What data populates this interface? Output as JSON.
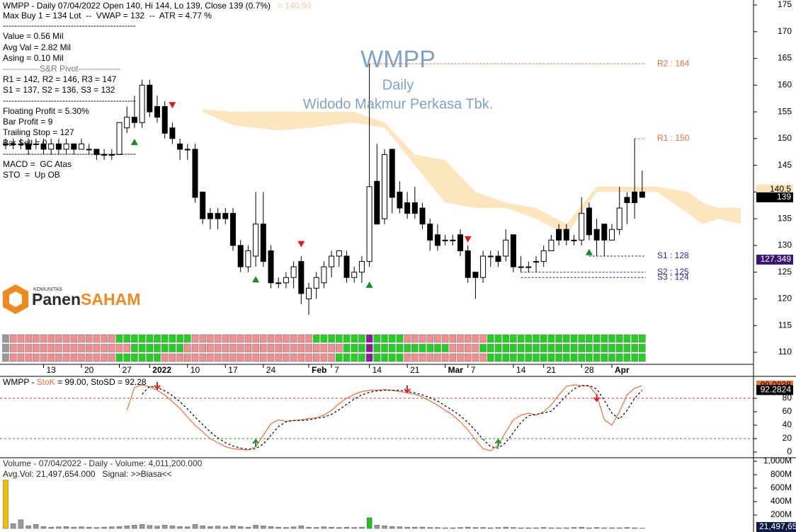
{
  "overlay": {
    "title": "WMPP",
    "subtitle": "Daily",
    "company": "Widodo Makmur Perkasa Tbk.",
    "info": [
      "WMPP - Daily 07/04/2022 Open 140, Hi 144, Lo 139, Close 139 (0.7%)",
      "Max Buy 1 = 134 Lot  --  VWAP = 132  --  ATR = 4.77 %",
      "-----------------------------------------------",
      "Value = 0.56 Mil",
      "Avg Val = 2.82 Mil",
      "Asing = 0.10 Mil",
      "-------------S&R Pivot---------------",
      "R1 = 142, R2 = 146, R3 = 147",
      "S1 = 137, S2 = 136, S3 = 132",
      "-----------------------------------------------",
      "Floating Profit = 5.30%",
      "Bar Profit = 9",
      "Trailing Stop = 127",
      "Bar Sell = 0",
      "-----------------------------------------------",
      "MACD =  GC Atas",
      "STO  =  Up OB"
    ],
    "info_extra": "= 140.50",
    "logo": {
      "small": "KOMUNITAS",
      "part1": "Panen",
      "part2": "SAHAM"
    }
  },
  "chart_data": [
    {
      "type": "candlestick",
      "categories": [
        null,
        null,
        null,
        null,
        null,
        "13",
        null,
        null,
        null,
        null,
        "20",
        null,
        null,
        null,
        null,
        "27",
        null,
        null,
        null,
        "2022",
        null,
        null,
        null,
        null,
        "10",
        null,
        null,
        null,
        null,
        "17",
        null,
        null,
        null,
        null,
        "24",
        null,
        null,
        null,
        null,
        null,
        "Feb",
        null,
        null,
        "7",
        null,
        null,
        null,
        null,
        "14",
        null,
        null,
        null,
        null,
        "21",
        null,
        null,
        null,
        null,
        "Mar",
        null,
        null,
        "7",
        null,
        null,
        null,
        null,
        null,
        "14",
        null,
        null,
        null,
        "21",
        null,
        null,
        null,
        null,
        "28",
        null,
        null,
        null,
        "Apr",
        null,
        null,
        null,
        null
      ],
      "open": [
        149,
        149,
        149,
        149,
        149,
        149,
        148,
        149,
        148,
        149,
        148,
        148,
        148,
        147,
        147,
        147,
        152,
        154,
        153,
        160,
        156,
        156,
        152,
        149,
        148,
        148,
        140,
        136,
        136,
        136,
        136,
        130,
        126,
        128,
        134,
        129,
        123,
        123,
        124,
        127,
        120,
        122,
        123,
        126,
        128,
        128,
        124,
        125,
        127,
        142,
        135,
        148,
        140,
        138,
        138,
        137,
        134,
        132,
        131,
        131,
        132,
        129,
        125,
        124,
        128,
        128,
        128,
        132,
        126,
        126,
        127,
        127,
        129,
        133,
        133,
        131,
        131,
        137,
        133,
        134,
        131,
        133,
        139,
        140,
        140
      ],
      "high": [
        150,
        150,
        150,
        150,
        150,
        150,
        150,
        150,
        150,
        149,
        150,
        149,
        148,
        148,
        148,
        153,
        156,
        158,
        161,
        161,
        158,
        157,
        153,
        150,
        149,
        149,
        140,
        137,
        137,
        137,
        137,
        131,
        130,
        140,
        140,
        130,
        124,
        125,
        127,
        128,
        123,
        125,
        127,
        129,
        129,
        129,
        126,
        128,
        164,
        149,
        148,
        148,
        142,
        140,
        141,
        138,
        135,
        134,
        132,
        132,
        133,
        130,
        125,
        129,
        129,
        129,
        133,
        132,
        128,
        127,
        128,
        130,
        132,
        134,
        134,
        132,
        139,
        138,
        135,
        134,
        134,
        141,
        140,
        150,
        144
      ],
      "low": [
        148,
        148,
        148,
        147,
        148,
        147,
        147,
        147,
        147,
        147,
        148,
        147,
        146,
        146,
        146,
        147,
        151,
        152,
        152,
        154,
        153,
        150,
        149,
        146,
        146,
        138,
        134,
        133,
        133,
        134,
        129,
        125,
        125,
        126,
        126,
        122,
        122,
        122,
        122,
        119,
        117,
        120,
        122,
        124,
        126,
        123,
        123,
        123,
        126,
        134,
        134,
        136,
        136,
        135,
        135,
        133,
        129,
        129,
        130,
        130,
        128,
        123,
        120,
        123,
        126,
        126,
        127,
        125,
        125,
        125,
        125,
        126,
        129,
        130,
        130,
        130,
        130,
        131,
        128,
        128,
        131,
        132,
        134,
        135,
        139
      ],
      "close": [
        149,
        149,
        149,
        148,
        149,
        148,
        149,
        148,
        149,
        148,
        149,
        148,
        147,
        147,
        147,
        153,
        154,
        153,
        160,
        155,
        154,
        151,
        150,
        148,
        148,
        139,
        135,
        135,
        135,
        135,
        130,
        126,
        129,
        134,
        127,
        123,
        123,
        124,
        126,
        121,
        122,
        124,
        126,
        128,
        129,
        124,
        125,
        127,
        141,
        134,
        147,
        139,
        137,
        136,
        136,
        134,
        131,
        130,
        131,
        131,
        129,
        124,
        124,
        128,
        128,
        127,
        131,
        126,
        126,
        126,
        127,
        129,
        131,
        131,
        131,
        131,
        136,
        132,
        131,
        131,
        133,
        137,
        138,
        138,
        139
      ],
      "up_color": "#ffffff",
      "down_color": "#000000",
      "ylim": [
        107.75,
        175.93
      ],
      "yticks": [
        110,
        115,
        120,
        125,
        130,
        135,
        140,
        145,
        150,
        155,
        160,
        165,
        170,
        175
      ],
      "cloud": {
        "x": [
          26,
          30,
          36,
          40,
          46,
          50,
          54,
          58,
          62,
          66,
          70,
          74,
          78,
          82,
          86,
          90,
          92,
          94,
          97
        ],
        "upper": [
          155.5,
          155,
          155,
          155,
          155,
          153,
          147,
          146,
          140,
          138,
          137,
          134,
          141,
          141,
          141,
          140,
          138,
          137,
          137
        ],
        "lower": [
          155,
          152.5,
          151.5,
          152,
          153,
          152,
          145,
          138,
          137,
          137,
          135,
          132,
          140,
          140,
          140,
          136,
          134,
          135,
          134
        ],
        "color": "#fde6bd"
      },
      "pivots": [
        {
          "label": "R2 : 164",
          "value": 164,
          "start": 48,
          "color": "#e8703a"
        },
        {
          "label": "R1 : 150",
          "value": 150,
          "start": 83,
          "color": "#e8703a"
        },
        {
          "label": "S1 : 128",
          "value": 128,
          "start": 77,
          "color": "#2b2b8c"
        },
        {
          "label": "S2 : 125",
          "value": 125,
          "start": 68,
          "color": "#2b2b8c"
        },
        {
          "label": "S3 : 124",
          "value": 124,
          "start": 68,
          "color": "#2b2b8c"
        }
      ],
      "signals": [
        {
          "index": 17,
          "value": 149.3,
          "dir": "up"
        },
        {
          "index": 33,
          "value": 123.6,
          "dir": "up"
        },
        {
          "index": 48,
          "value": 122.6,
          "dir": "up"
        },
        {
          "index": 77,
          "value": 128.7,
          "dir": "up"
        },
        {
          "index": 22,
          "value": 156.3,
          "dir": "down"
        },
        {
          "index": 39,
          "value": 130.3,
          "dir": "down"
        },
        {
          "index": 61,
          "value": 131.2,
          "dir": "down"
        }
      ],
      "right_labels": [
        {
          "value": 140.5,
          "color": "#fbe3b8",
          "text_color": "#000000"
        },
        {
          "value": 127.349,
          "color": "#3a1670",
          "text_color": "#ffffff"
        }
      ],
      "status_rows": [
        [
          [
            "x",
            1
          ],
          [
            "r",
            14
          ],
          [
            "g",
            10
          ],
          [
            "r",
            16
          ],
          [
            "g",
            7
          ],
          [
            "p",
            1
          ],
          [
            "g",
            4
          ],
          [
            "r",
            11
          ],
          [
            "g",
            21
          ]
        ],
        [
          [
            "x",
            1
          ],
          [
            "r",
            16
          ],
          [
            "g",
            7
          ],
          [
            "r",
            21
          ],
          [
            "g",
            3
          ],
          [
            "p",
            1
          ],
          [
            "g",
            10
          ],
          [
            "r",
            4
          ],
          [
            "g",
            22
          ]
        ],
        [
          [
            "x",
            1
          ],
          [
            "r",
            14
          ],
          [
            "g",
            6
          ],
          [
            "r",
            23
          ],
          [
            "g",
            4
          ],
          [
            "p",
            1
          ],
          [
            "g",
            4
          ],
          [
            "r",
            11
          ],
          [
            "g",
            21
          ]
        ]
      ],
      "status_colors": {
        "x": "#9a9a9a",
        "r": "#f48f8f",
        "g": "#22d022",
        "p": "#8b1a9b"
      }
    },
    {
      "type": "line",
      "header": [
        "WMPP - ",
        "StoK",
        " = 99.00, StoSD = 92.28"
      ],
      "ylim": [
        -8.4,
        111.6
      ],
      "yticks": [
        0,
        20,
        40,
        60,
        80
      ],
      "levels": [
        {
          "value": 80,
          "color": "#d03030"
        },
        {
          "value": 20,
          "color": "#309030"
        }
      ],
      "series": [
        {
          "color": "#e8703a",
          "dash": false,
          "box_text": "#000000",
          "values": [
            null,
            null,
            null,
            null,
            null,
            null,
            null,
            null,
            null,
            null,
            null,
            null,
            null,
            null,
            null,
            null,
            62,
            96,
            100,
            97,
            92,
            85,
            75,
            65,
            52,
            40,
            30,
            20,
            14,
            8,
            5,
            4,
            3,
            8,
            25,
            42,
            48,
            46,
            47,
            48,
            50,
            51,
            55,
            62,
            72,
            80,
            86,
            90,
            92,
            92,
            93,
            92,
            90,
            88,
            86,
            82,
            76,
            70,
            62,
            55,
            45,
            33,
            18,
            5,
            2,
            10,
            30,
            48,
            55,
            58,
            55,
            60,
            70,
            85,
            98,
            100,
            99,
            98,
            85,
            48,
            40,
            60,
            85,
            95,
            99.0038
          ]
        },
        {
          "color": "#000000",
          "dash": true,
          "box_text": "#ffffff",
          "values": [
            null,
            null,
            null,
            null,
            null,
            null,
            null,
            null,
            null,
            null,
            null,
            null,
            null,
            null,
            null,
            null,
            null,
            null,
            86,
            98,
            96,
            91,
            84,
            75,
            64,
            52,
            41,
            30,
            21,
            14,
            9,
            6,
            4,
            5,
            12,
            25,
            38,
            45,
            47,
            47,
            48,
            50,
            52,
            56,
            63,
            71,
            79,
            85,
            89,
            91,
            92,
            92,
            92,
            90,
            88,
            85,
            81,
            76,
            69,
            62,
            54,
            44,
            32,
            19,
            8,
            6,
            14,
            29,
            44,
            54,
            56,
            58,
            61,
            72,
            84,
            94,
            99,
            99,
            94,
            77,
            58,
            49,
            62,
            80,
            92.2824
          ]
        }
      ],
      "signals": [
        {
          "index": 20,
          "value": 94,
          "dir": "down"
        },
        {
          "index": 53,
          "value": 88.9,
          "dir": "down"
        },
        {
          "index": 78,
          "value": 76,
          "dir": "down"
        },
        {
          "index": 33,
          "value": 18,
          "dir": "up"
        },
        {
          "index": 65,
          "value": 18,
          "dir": "up"
        }
      ]
    },
    {
      "type": "bar",
      "header": [
        "Volume - 07/04/2022 - Daily - Volume: 4,011,200.000",
        "Avg.Vol: 21,497,654.000   Signal: >>Biasa<<"
      ],
      "ylim": [
        -52600000,
        1042000000
      ],
      "yticks": [
        {
          "value": 200000000,
          "label": "200M"
        },
        {
          "value": 400000000,
          "label": "400M"
        },
        {
          "value": 600000000,
          "label": "600M"
        },
        {
          "value": 800000000,
          "label": "800M"
        },
        {
          "value": 1000000000,
          "label": "1,000M"
        }
      ],
      "color": "#9a9a9a",
      "highlights": [
        {
          "index": 0,
          "color": "#f0c000"
        },
        {
          "index": 48,
          "color": "#22c022"
        }
      ],
      "values": [
        720000000,
        70000000,
        130000000,
        40000000,
        60000000,
        30000000,
        20000000,
        25000000,
        30000000,
        20000000,
        25000000,
        20000000,
        15000000,
        20000000,
        25000000,
        30000000,
        40000000,
        50000000,
        60000000,
        45000000,
        35000000,
        50000000,
        40000000,
        30000000,
        25000000,
        60000000,
        40000000,
        30000000,
        35000000,
        25000000,
        40000000,
        30000000,
        20000000,
        50000000,
        40000000,
        30000000,
        20000000,
        15000000,
        25000000,
        40000000,
        20000000,
        15000000,
        25000000,
        20000000,
        15000000,
        20000000,
        15000000,
        20000000,
        160000000,
        50000000,
        40000000,
        30000000,
        25000000,
        20000000,
        20000000,
        20000000,
        15000000,
        15000000,
        10000000,
        10000000,
        15000000,
        20000000,
        15000000,
        15000000,
        10000000,
        15000000,
        20000000,
        15000000,
        10000000,
        10000000,
        10000000,
        15000000,
        10000000,
        10000000,
        10000000,
        15000000,
        20000000,
        10000000,
        15000000,
        10000000,
        10000000,
        10000000,
        15000000,
        10000000,
        4011200
      ],
      "avg_label": {
        "value": 21497654,
        "label": "21,497,65"
      }
    }
  ]
}
